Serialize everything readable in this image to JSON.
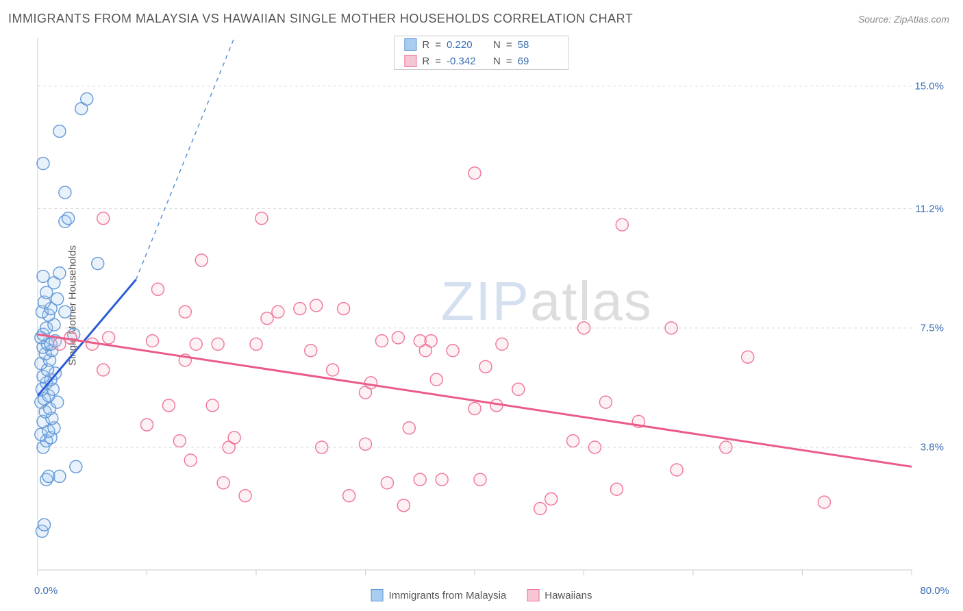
{
  "header": {
    "title": "IMMIGRANTS FROM MALAYSIA VS HAWAIIAN SINGLE MOTHER HOUSEHOLDS CORRELATION CHART",
    "source_label": "Source:",
    "source_name": "ZipAtlas.com"
  },
  "watermark": {
    "part1": "ZIP",
    "part2": "atlas"
  },
  "chart": {
    "type": "scatter",
    "background_color": "#ffffff",
    "grid_color": "#d8d8d8",
    "axis_color": "#cccccc",
    "tick_color": "#cccccc",
    "tick_label_color": "#3b6fb6",
    "label_color": "#555555",
    "title_fontsize": 18,
    "label_fontsize": 15,
    "tick_fontsize": 15,
    "marker_radius": 9,
    "marker_fill_opacity": 0.25,
    "marker_stroke_opacity": 0.9,
    "trend_line_width": 3,
    "dashed_line_width": 1.5,
    "ylabel": "Single Mother Households",
    "xlim": [
      0.0,
      80.0
    ],
    "ylim": [
      0.0,
      16.5
    ],
    "xticks": [
      0.0,
      80.0
    ],
    "xtick_labels": [
      "0.0%",
      "80.0%"
    ],
    "yticks": [
      3.8,
      7.5,
      11.2,
      15.0
    ],
    "ytick_labels": [
      "3.8%",
      "7.5%",
      "11.2%",
      "15.0%"
    ],
    "x_minor_grid_step": 10,
    "series": [
      {
        "id": "blue",
        "label": "Immigrants from Malaysia",
        "fill": "#a8cdf0",
        "stroke": "#5b93d6",
        "r_value": "0.220",
        "n_value": "58",
        "trend": {
          "x1": 0.0,
          "y1": 5.4,
          "x2": 9.0,
          "y2": 9.0,
          "color": "#2a5bd7"
        },
        "trend_extension": {
          "x1": 9.0,
          "y1": 9.0,
          "x2": 18.0,
          "y2": 16.5,
          "color": "#5b93d6"
        },
        "points": [
          [
            0.4,
            1.2
          ],
          [
            0.6,
            1.4
          ],
          [
            0.8,
            2.8
          ],
          [
            1.0,
            2.9
          ],
          [
            2.0,
            2.9
          ],
          [
            3.5,
            3.2
          ],
          [
            0.5,
            3.8
          ],
          [
            0.8,
            4.0
          ],
          [
            1.2,
            4.1
          ],
          [
            0.3,
            4.2
          ],
          [
            1.0,
            4.3
          ],
          [
            1.5,
            4.4
          ],
          [
            0.5,
            4.6
          ],
          [
            1.3,
            4.7
          ],
          [
            0.7,
            4.9
          ],
          [
            1.1,
            5.0
          ],
          [
            0.3,
            5.2
          ],
          [
            1.8,
            5.2
          ],
          [
            0.6,
            5.3
          ],
          [
            1.0,
            5.4
          ],
          [
            0.4,
            5.6
          ],
          [
            1.4,
            5.6
          ],
          [
            0.8,
            5.8
          ],
          [
            1.2,
            5.9
          ],
          [
            0.5,
            6.0
          ],
          [
            1.6,
            6.1
          ],
          [
            0.9,
            6.2
          ],
          [
            0.3,
            6.4
          ],
          [
            1.1,
            6.5
          ],
          [
            0.7,
            6.7
          ],
          [
            1.3,
            6.8
          ],
          [
            0.5,
            6.9
          ],
          [
            0.9,
            7.0
          ],
          [
            1.2,
            7.0
          ],
          [
            1.6,
            7.1
          ],
          [
            0.3,
            7.2
          ],
          [
            0.5,
            7.3
          ],
          [
            3.3,
            7.3
          ],
          [
            0.8,
            7.5
          ],
          [
            1.5,
            7.6
          ],
          [
            1.0,
            7.9
          ],
          [
            0.4,
            8.0
          ],
          [
            2.5,
            8.0
          ],
          [
            1.2,
            8.1
          ],
          [
            0.6,
            8.3
          ],
          [
            1.8,
            8.4
          ],
          [
            0.8,
            8.6
          ],
          [
            1.5,
            8.9
          ],
          [
            0.5,
            9.1
          ],
          [
            2.0,
            9.2
          ],
          [
            5.5,
            9.5
          ],
          [
            2.5,
            10.8
          ],
          [
            2.8,
            10.9
          ],
          [
            2.5,
            11.7
          ],
          [
            0.5,
            12.6
          ],
          [
            2.0,
            13.6
          ],
          [
            4.0,
            14.3
          ],
          [
            4.5,
            14.6
          ]
        ]
      },
      {
        "id": "pink",
        "label": "Hawaiians",
        "fill": "#f7c6d4",
        "stroke": "#ed6d94",
        "r_value": "-0.342",
        "n_value": "69",
        "trend": {
          "x1": 0.0,
          "y1": 7.3,
          "x2": 80.0,
          "y2": 3.2,
          "color": "#ea5b87"
        },
        "points": [
          [
            2.0,
            7.0
          ],
          [
            3.0,
            7.2
          ],
          [
            5.0,
            7.0
          ],
          [
            6.0,
            6.2
          ],
          [
            6.5,
            7.2
          ],
          [
            6.0,
            10.9
          ],
          [
            10.0,
            4.5
          ],
          [
            10.5,
            7.1
          ],
          [
            11.0,
            8.7
          ],
          [
            12.0,
            5.1
          ],
          [
            13.0,
            4.0
          ],
          [
            13.5,
            6.5
          ],
          [
            14.0,
            3.4
          ],
          [
            14.5,
            7.0
          ],
          [
            15.0,
            9.6
          ],
          [
            13.5,
            8.0
          ],
          [
            16.0,
            5.1
          ],
          [
            16.5,
            7.0
          ],
          [
            17.0,
            2.7
          ],
          [
            17.5,
            3.8
          ],
          [
            18.0,
            4.1
          ],
          [
            19.0,
            2.3
          ],
          [
            20.0,
            7.0
          ],
          [
            20.5,
            10.9
          ],
          [
            21.0,
            7.8
          ],
          [
            22.0,
            8.0
          ],
          [
            24.0,
            8.1
          ],
          [
            25.0,
            6.8
          ],
          [
            25.5,
            8.2
          ],
          [
            26.0,
            3.8
          ],
          [
            27.0,
            6.2
          ],
          [
            28.0,
            8.1
          ],
          [
            28.5,
            2.3
          ],
          [
            30.0,
            5.5
          ],
          [
            30.0,
            3.9
          ],
          [
            30.5,
            5.8
          ],
          [
            31.5,
            7.1
          ],
          [
            32.0,
            2.7
          ],
          [
            33.0,
            7.2
          ],
          [
            33.5,
            2.0
          ],
          [
            34.0,
            4.4
          ],
          [
            35.0,
            2.8
          ],
          [
            35.5,
            6.8
          ],
          [
            35.0,
            7.1
          ],
          [
            36.0,
            7.1
          ],
          [
            36.5,
            5.9
          ],
          [
            37.0,
            2.8
          ],
          [
            38.0,
            6.8
          ],
          [
            40.0,
            12.3
          ],
          [
            40.0,
            5.0
          ],
          [
            40.5,
            2.8
          ],
          [
            41.0,
            6.3
          ],
          [
            42.0,
            5.1
          ],
          [
            42.5,
            7.0
          ],
          [
            44.0,
            5.6
          ],
          [
            46.0,
            1.9
          ],
          [
            47.0,
            2.2
          ],
          [
            49.0,
            4.0
          ],
          [
            50.0,
            7.5
          ],
          [
            51.0,
            3.8
          ],
          [
            52.0,
            5.2
          ],
          [
            53.0,
            2.5
          ],
          [
            53.5,
            10.7
          ],
          [
            55.0,
            4.6
          ],
          [
            58.0,
            7.5
          ],
          [
            58.5,
            3.1
          ],
          [
            63.0,
            3.8
          ],
          [
            65.0,
            6.6
          ],
          [
            72.0,
            2.1
          ]
        ]
      }
    ]
  },
  "legend_stats": {
    "r_label": "R",
    "n_label": "N",
    "equals": "="
  }
}
